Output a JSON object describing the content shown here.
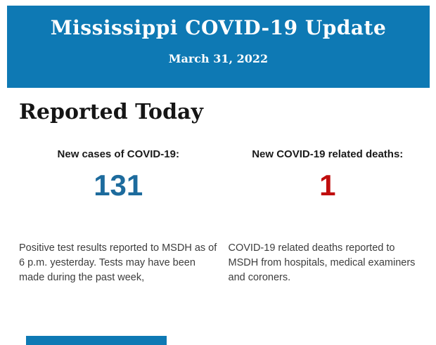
{
  "header": {
    "title": "Mississippi COVID-19 Update",
    "date": "March 31, 2022",
    "background_color": "#0e79b4",
    "text_color": "#ffffff"
  },
  "main": {
    "heading": "Reported Today",
    "stats": [
      {
        "label": "New cases of COVID-19:",
        "value": "131",
        "value_color": "#1d6b9d",
        "description": "Positive test results reported to MSDH as of 6 p.m. yesterday. Tests may have been made during the past week,"
      },
      {
        "label": "New COVID-19 related deaths:",
        "value": "1",
        "value_color": "#c00d0d",
        "description": "COVID-19 related deaths reported to MSDH from hospitals, medical examiners and coroners."
      }
    ]
  },
  "footer": {
    "bar_color": "#0e79b4"
  }
}
